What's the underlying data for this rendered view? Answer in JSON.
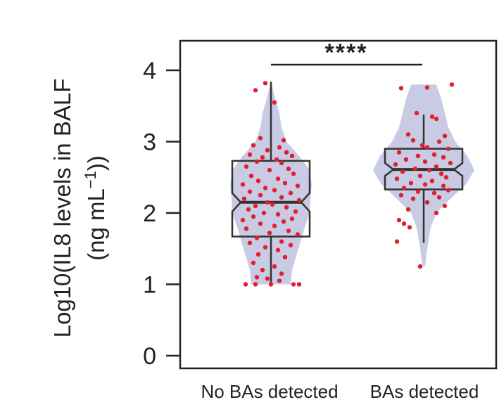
{
  "chart_data": {
    "type": "violin",
    "ylabel_line1": "Log10(IL8 levels in BALF",
    "ylabel_line2_pre": "(ng mL",
    "ylabel_line2_sup": "−1",
    "ylabel_line2_post": "))",
    "ylim": [
      0,
      4.4
    ],
    "yticks": [
      "0",
      "1",
      "2",
      "3",
      "4"
    ],
    "categories": [
      "No BAs detected",
      "BAs detected"
    ],
    "significance": "****",
    "colors": {
      "violin": "#c9cbe4",
      "points": "#e0202f",
      "box": "#333333"
    },
    "groups": [
      {
        "name": "No BAs detected",
        "box": {
          "min": 1.0,
          "q1": 1.67,
          "median": 2.15,
          "q3": 2.73,
          "max": 3.84,
          "notch_lo": 2.02,
          "notch_hi": 2.28
        },
        "violin": [
          [
            1.0,
            0.28
          ],
          [
            1.2,
            0.3
          ],
          [
            1.4,
            0.36
          ],
          [
            1.6,
            0.42
          ],
          [
            1.8,
            0.48
          ],
          [
            2.0,
            0.55
          ],
          [
            2.2,
            0.56
          ],
          [
            2.4,
            0.58
          ],
          [
            2.6,
            0.55
          ],
          [
            2.8,
            0.4
          ],
          [
            3.0,
            0.22
          ],
          [
            3.2,
            0.15
          ],
          [
            3.4,
            0.12
          ],
          [
            3.6,
            0.06
          ],
          [
            3.84,
            0.0
          ]
        ],
        "points": [
          [
            -0.22,
            3.72
          ],
          [
            -0.08,
            3.82
          ],
          [
            0.05,
            3.55
          ],
          [
            -0.15,
            3.05
          ],
          [
            0.18,
            3.02
          ],
          [
            -0.25,
            2.95
          ],
          [
            0.12,
            2.92
          ],
          [
            -0.05,
            2.88
          ],
          [
            0.22,
            2.85
          ],
          [
            -0.3,
            2.82
          ],
          [
            0.3,
            2.8
          ],
          [
            -0.12,
            2.78
          ],
          [
            0.08,
            2.75
          ],
          [
            -0.2,
            2.72
          ],
          [
            0.15,
            2.7
          ],
          [
            -0.35,
            2.65
          ],
          [
            0.25,
            2.62
          ],
          [
            -0.02,
            2.6
          ],
          [
            0.32,
            2.55
          ],
          [
            -0.28,
            2.52
          ],
          [
            0.1,
            2.48
          ],
          [
            -0.18,
            2.45
          ],
          [
            0.2,
            2.42
          ],
          [
            -0.4,
            2.4
          ],
          [
            0.38,
            2.38
          ],
          [
            -0.08,
            2.35
          ],
          [
            0.05,
            2.32
          ],
          [
            -0.3,
            2.3
          ],
          [
            0.28,
            2.28
          ],
          [
            -0.15,
            2.25
          ],
          [
            0.15,
            2.22
          ],
          [
            -0.38,
            2.2
          ],
          [
            0.4,
            2.18
          ],
          [
            -0.05,
            2.15
          ],
          [
            0.02,
            2.12
          ],
          [
            -0.22,
            2.1
          ],
          [
            0.22,
            2.08
          ],
          [
            -0.32,
            2.05
          ],
          [
            0.35,
            2.02
          ],
          [
            -0.1,
            2.0
          ],
          [
            0.1,
            1.98
          ],
          [
            -0.25,
            1.95
          ],
          [
            0.3,
            1.92
          ],
          [
            -0.4,
            1.9
          ],
          [
            0.18,
            1.88
          ],
          [
            -0.15,
            1.85
          ],
          [
            0.05,
            1.82
          ],
          [
            -0.35,
            1.78
          ],
          [
            0.25,
            1.75
          ],
          [
            -0.02,
            1.72
          ],
          [
            0.38,
            1.7
          ],
          [
            -0.2,
            1.65
          ],
          [
            0.15,
            1.6
          ],
          [
            -0.3,
            1.58
          ],
          [
            0.28,
            1.55
          ],
          [
            -0.08,
            1.52
          ],
          [
            0.1,
            1.48
          ],
          [
            -0.18,
            1.42
          ],
          [
            0.2,
            1.38
          ],
          [
            -0.25,
            1.3
          ],
          [
            0.05,
            1.25
          ],
          [
            -0.12,
            1.2
          ],
          [
            0.15,
            1.15
          ],
          [
            -0.2,
            1.1
          ],
          [
            -0.36,
            1.0
          ],
          [
            -0.22,
            1.0
          ],
          [
            0.0,
            1.0
          ],
          [
            0.32,
            1.0
          ],
          [
            0.4,
            1.0
          ],
          [
            0.12,
            1.05
          ],
          [
            -0.05,
            1.08
          ]
        ]
      },
      {
        "name": "BAs detected",
        "box": {
          "min": 1.58,
          "q1": 2.33,
          "median": 2.61,
          "q3": 2.9,
          "max": 3.38,
          "notch_lo": 2.52,
          "notch_hi": 2.7
        },
        "violin": [
          [
            1.25,
            0.02
          ],
          [
            1.5,
            0.05
          ],
          [
            1.8,
            0.1
          ],
          [
            2.0,
            0.18
          ],
          [
            2.2,
            0.38
          ],
          [
            2.4,
            0.6
          ],
          [
            2.6,
            0.72
          ],
          [
            2.8,
            0.62
          ],
          [
            3.0,
            0.45
          ],
          [
            3.2,
            0.35
          ],
          [
            3.4,
            0.3
          ],
          [
            3.6,
            0.25
          ],
          [
            3.8,
            0.18
          ]
        ],
        "points": [
          [
            -0.32,
            3.75
          ],
          [
            0.05,
            3.76
          ],
          [
            0.4,
            3.8
          ],
          [
            -0.1,
            3.4
          ],
          [
            0.12,
            3.35
          ],
          [
            0.18,
            3.32
          ],
          [
            -0.22,
            3.1
          ],
          [
            0.3,
            3.08
          ],
          [
            -0.15,
            3.02
          ],
          [
            0.22,
            3.0
          ],
          [
            -0.02,
            2.95
          ],
          [
            0.05,
            2.92
          ],
          [
            0.35,
            2.9
          ],
          [
            -0.35,
            2.85
          ],
          [
            0.15,
            2.82
          ],
          [
            -0.08,
            2.8
          ],
          [
            0.28,
            2.78
          ],
          [
            -0.25,
            2.75
          ],
          [
            0.02,
            2.72
          ],
          [
            0.38,
            2.7
          ],
          [
            -0.4,
            2.68
          ],
          [
            0.18,
            2.65
          ],
          [
            -0.12,
            2.62
          ],
          [
            0.08,
            2.6
          ],
          [
            -0.3,
            2.58
          ],
          [
            0.25,
            2.55
          ],
          [
            -0.05,
            2.52
          ],
          [
            0.32,
            2.5
          ],
          [
            -0.38,
            2.48
          ],
          [
            0.12,
            2.45
          ],
          [
            -0.18,
            2.42
          ],
          [
            0.02,
            2.4
          ],
          [
            0.28,
            2.38
          ],
          [
            -0.28,
            2.35
          ],
          [
            0.35,
            2.32
          ],
          [
            -0.08,
            2.3
          ],
          [
            0.15,
            2.28
          ],
          [
            -0.32,
            2.25
          ],
          [
            0.22,
            2.22
          ],
          [
            -0.15,
            2.2
          ],
          [
            0.05,
            2.15
          ],
          [
            0.3,
            2.1
          ],
          [
            -0.22,
            2.05
          ],
          [
            0.18,
            2.0
          ],
          [
            -0.35,
            1.9
          ],
          [
            -0.28,
            1.85
          ],
          [
            -0.2,
            1.8
          ],
          [
            -0.38,
            1.6
          ],
          [
            -0.05,
            1.25
          ]
        ]
      }
    ]
  }
}
